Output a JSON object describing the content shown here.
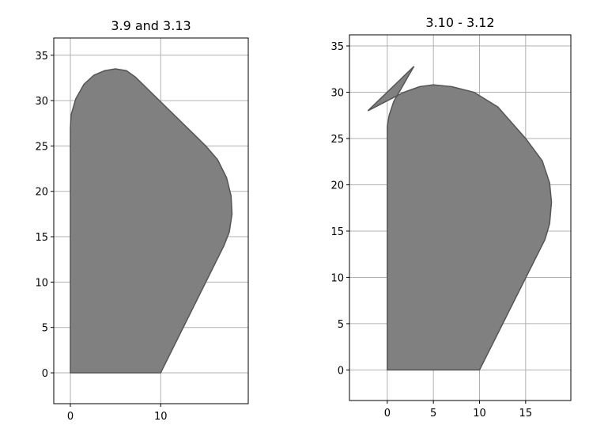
{
  "chart_data": [
    {
      "type": "polygon",
      "title": "3.9 and 3.13",
      "x": [
        0,
        10,
        17,
        17.6,
        17.9,
        17.8,
        17.3,
        16.3,
        15,
        7.2,
        6.2,
        5,
        3.8,
        2.6,
        1.5,
        0.6,
        0.1,
        0,
        0
      ],
      "values": [
        0,
        0,
        14,
        15.5,
        17.5,
        19.5,
        21.5,
        23.5,
        25,
        32.6,
        33.3,
        33.5,
        33.3,
        32.8,
        31.8,
        30.2,
        28.5,
        27,
        0
      ],
      "color": "#808080",
      "edgecolor": "#555555",
      "xlim": [
        -1.84,
        19.7
      ],
      "ylim": [
        -3.4,
        36.9
      ],
      "xticks": [
        0,
        10
      ],
      "yticks": [
        0,
        5,
        10,
        15,
        20,
        25,
        30,
        35
      ],
      "grid": true
    },
    {
      "type": "polygon",
      "title": "3.10 - 3.12",
      "x": [
        0,
        10,
        17.1,
        17.6,
        17.8,
        17.6,
        16.8,
        15,
        12,
        9.4,
        7,
        5,
        3.5,
        1.8,
        -2.1,
        2.9,
        2.2,
        1.4,
        0.7,
        0.2,
        0,
        0
      ],
      "values": [
        0,
        0,
        14.1,
        15.8,
        18.1,
        20.2,
        22.6,
        25,
        28.4,
        30,
        30.6,
        30.8,
        30.6,
        30,
        28,
        32.8,
        31.6,
        30.2,
        29,
        27.5,
        26.3,
        0
      ],
      "color": "#808080",
      "edgecolor": "#555555",
      "xlim": [
        -4.1,
        19.9
      ],
      "ylim": [
        -3.3,
        36.2
      ],
      "xticks": [
        0,
        5,
        10,
        15
      ],
      "yticks": [
        0,
        5,
        10,
        15,
        20,
        25,
        30,
        35
      ],
      "grid": true
    }
  ]
}
